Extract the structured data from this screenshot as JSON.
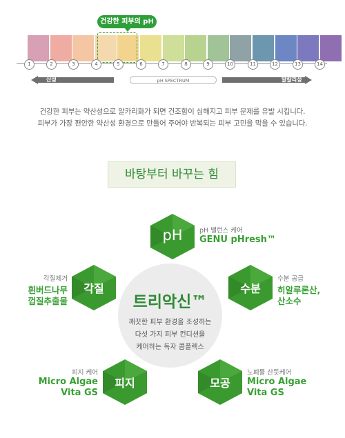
{
  "ph_scale": {
    "badge_label": "건강한 피부의 pH",
    "spectrum_label": "pH SPECTRUM",
    "acid_label": "산성",
    "alkaline_label": "알칼리성",
    "ticks": [
      "1",
      "2",
      "3",
      "4",
      "5",
      "6",
      "7",
      "8",
      "9",
      "10",
      "11",
      "12",
      "13",
      "14"
    ],
    "colors": [
      "#d8a0b4",
      "#efaca2",
      "#f4c6a3",
      "#f3d9ad",
      "#f3d48e",
      "#e9e190",
      "#cfdf99",
      "#b8d38f",
      "#a0c497",
      "#8fa2a5",
      "#6d97ae",
      "#6d86c4",
      "#7d79bf",
      "#8f6fb2"
    ]
  },
  "description": {
    "line1": "건강한 피부는 약산성으로 알카리화가 되면 건조함이 심해지고 피부 문제를 유발 시킵니다.",
    "line2": "피부가 가장 편안한 약산성 환경으로 만들어 주어야 반복되는 피부 고민을 막을 수 있습니다."
  },
  "section": {
    "title": "바탕부터 바꾸는 힘"
  },
  "center": {
    "title": "트리악신™",
    "line1": "깨끗한 피부 환경을 조성하는",
    "line2": "다섯 가지 피부 컨디션을",
    "line3": "케어하는 독자 콤플렉스"
  },
  "items": {
    "ph": {
      "hex": "pH",
      "small": "pH 밸런스 케어",
      "green": "GENU pHresh™"
    },
    "keratin": {
      "hex": "각질",
      "small": "각질제거",
      "green1": "흰버드나무",
      "green2": "껍질추출물"
    },
    "moisture": {
      "hex": "수분",
      "small": "수분 공급",
      "green1": "히알루론산,",
      "green2": "산소수"
    },
    "sebum": {
      "hex": "피지",
      "small": "피지 케어",
      "green1": "Micro Algae",
      "green2": "Vita GS"
    },
    "pore": {
      "hex": "모공",
      "small": "노폐물 산뜻케어",
      "green1": "Micro Algae",
      "green2": "Vita GS"
    }
  },
  "colors": {
    "accent": "#2f9f3a",
    "accent_dark": "#2f8a35",
    "hex_fill": "#3b9a2f"
  }
}
